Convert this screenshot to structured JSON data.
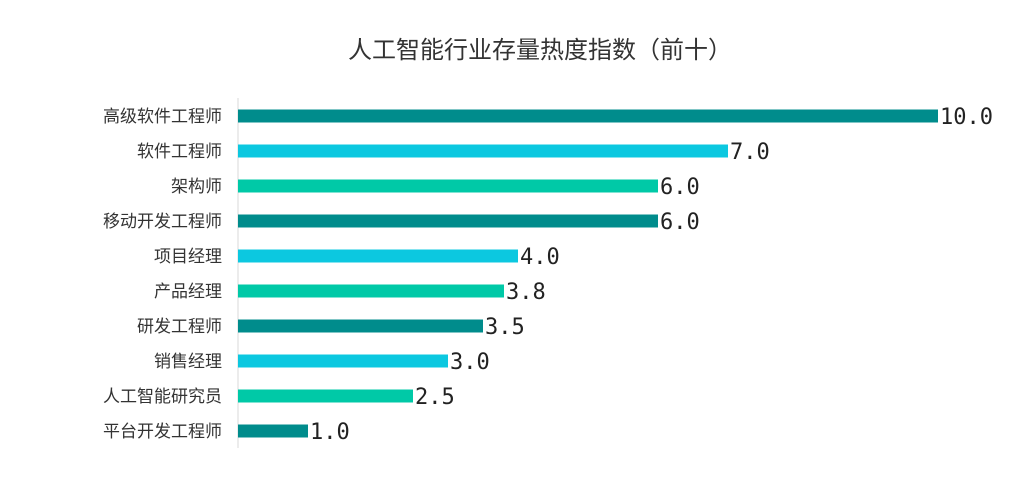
{
  "chart_data": {
    "type": "bar",
    "orientation": "horizontal",
    "title": "人工智能行业存量热度指数（前十）",
    "categories": [
      "高级软件工程师",
      "软件工程师",
      "架构师",
      "移动开发工程师",
      "项目经理",
      "产品经理",
      "研发工程师",
      "销售经理",
      "人工智能研究员",
      "平台开发工程师"
    ],
    "values": [
      10.0,
      7.0,
      6.0,
      6.0,
      4.0,
      3.8,
      3.5,
      3.0,
      2.5,
      1.0
    ],
    "value_labels": [
      "10.0",
      "7.0",
      "6.0",
      "6.0",
      "4.0",
      "3.8",
      "3.5",
      "3.0",
      "2.5",
      "1.0"
    ],
    "bar_colors": [
      "#008C8C",
      "#0CC8E0",
      "#00C9A7",
      "#008C8C",
      "#0CC8E0",
      "#00C9A7",
      "#008C8C",
      "#0CC8E0",
      "#00C9A7",
      "#008C8C"
    ],
    "xlim": [
      0,
      10
    ],
    "grid": false,
    "legend": "none"
  }
}
